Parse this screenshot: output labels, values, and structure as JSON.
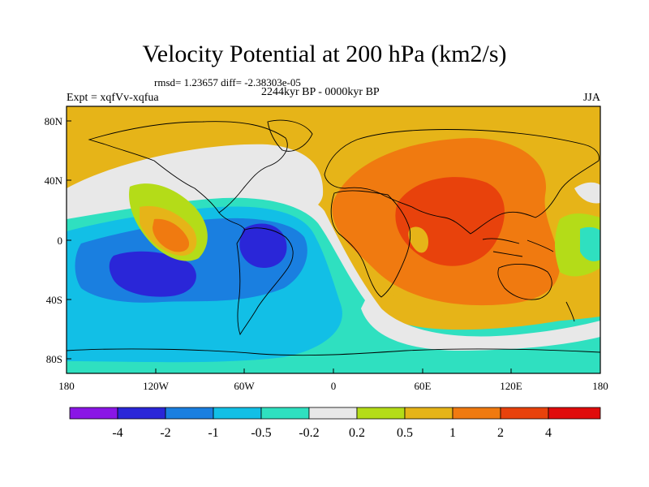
{
  "title": "Velocity Potential at 200 hPa (km2/s)",
  "stats": "rmsd= 1.23657 diff= -2.38303e-05",
  "period": "2244kyr BP - 0000kyr BP",
  "experiment": "Expt = xqfVv-xqfua",
  "season": "JJA",
  "axes": {
    "y_ticks": [
      "80N",
      "40N",
      "0",
      "40S",
      "80S"
    ],
    "x_ticks": [
      "180",
      "120W",
      "60W",
      "0",
      "60E",
      "120E",
      "180"
    ]
  },
  "colorbar": {
    "labels": [
      "-4",
      "-2",
      "-1",
      "-0.5",
      "-0.2",
      "0.2",
      "0.5",
      "1",
      "2",
      "4"
    ],
    "colors": [
      "#8a16e6",
      "#2a26d8",
      "#1a7fe0",
      "#12bfe6",
      "#2fe0c0",
      "#e8e8e8",
      "#b4dc18",
      "#e6b418",
      "#f07a10",
      "#e8420c",
      "#e00c0c"
    ]
  },
  "background_color": "#e6b418"
}
